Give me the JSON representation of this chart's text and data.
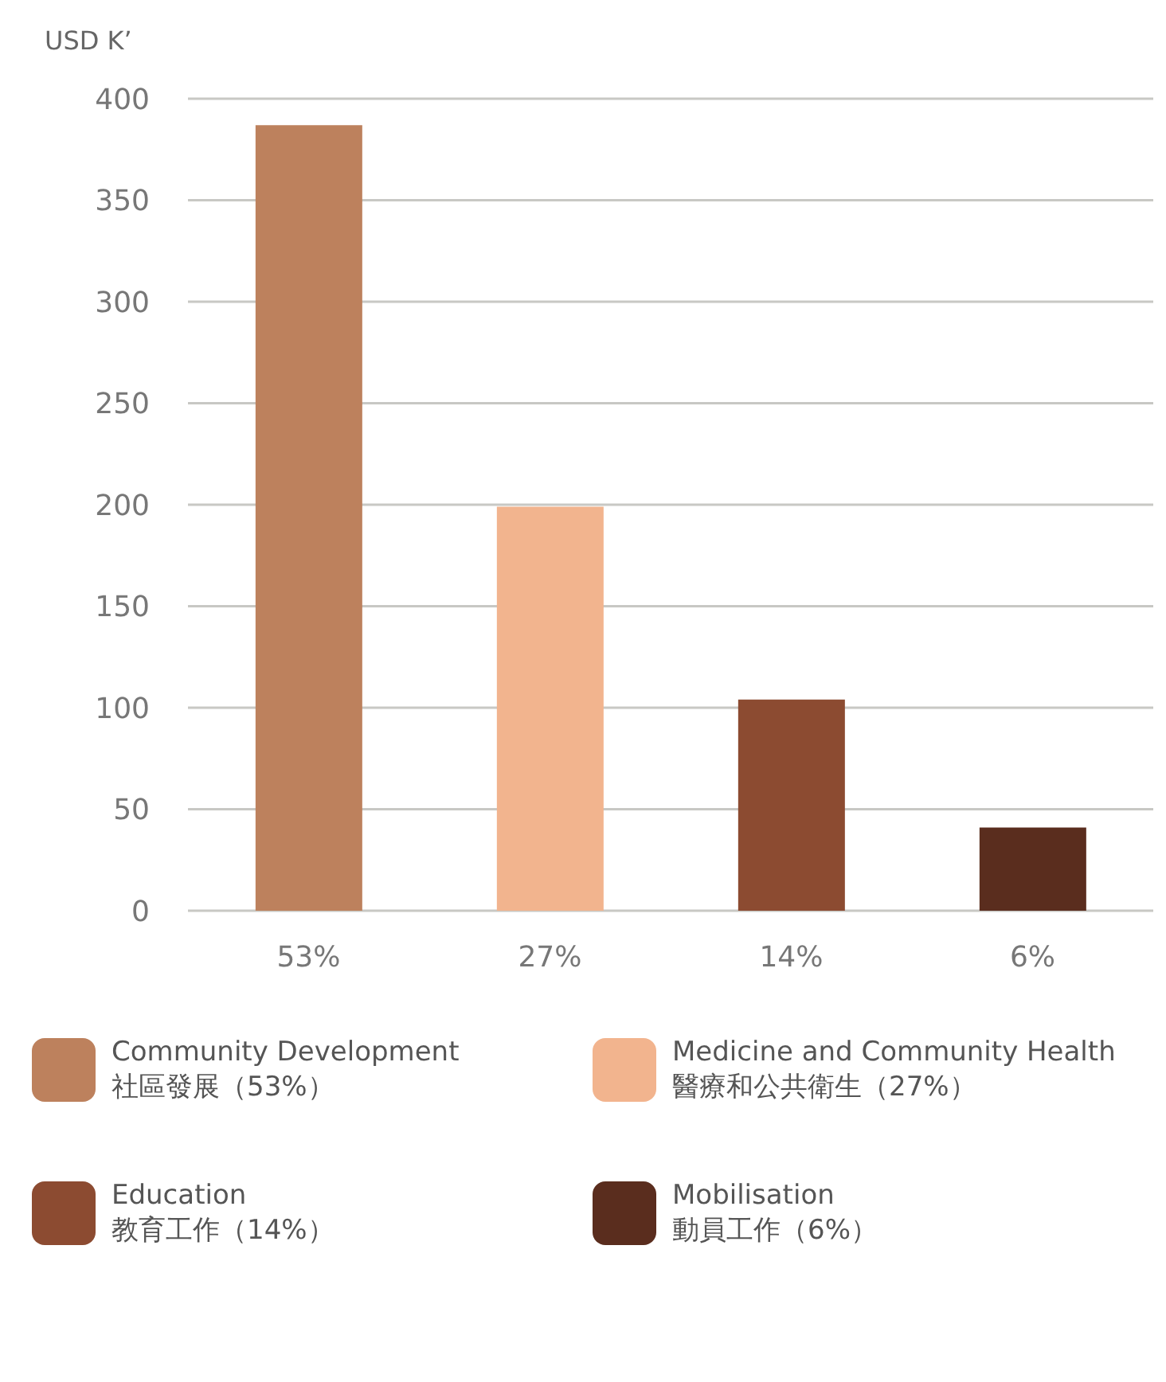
{
  "chart_data": {
    "type": "bar",
    "ylabel": "USD K’",
    "stacked": true,
    "categories": [
      "53%",
      "27%",
      "14%",
      "6%"
    ],
    "series": [
      {
        "name": "Community Development\n社區發展（53%）",
        "color": "#bd815d",
        "values": [
          387,
          null,
          null,
          null
        ]
      },
      {
        "name": "Medicine and Community Health\n醫療和公共衛生（27%）",
        "color": "#f2b48e",
        "values": [
          null,
          199,
          null,
          null
        ]
      },
      {
        "name": "Education\n教育工作（14%）",
        "color": "#8c4b31",
        "values": [
          null,
          null,
          104,
          null
        ]
      },
      {
        "name": "Mobilisation\n動員工作（6%）",
        "color": "#5a2d1e",
        "values": [
          null,
          null,
          null,
          41
        ]
      }
    ],
    "ylim": [
      0,
      400
    ],
    "yticks": [
      0,
      50,
      100,
      150,
      200,
      250,
      300,
      350,
      400
    ],
    "grid": "y",
    "legend": "bottom"
  }
}
